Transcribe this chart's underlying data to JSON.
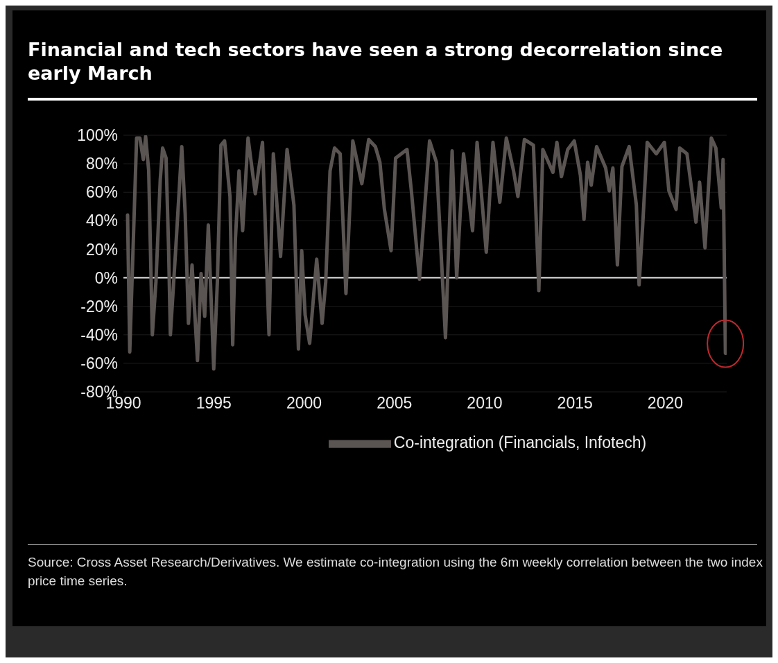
{
  "chart_data": {
    "type": "line",
    "title": "Financial and tech sectors have seen a strong decorrelation since early March",
    "x": [
      1990.23,
      1990.35,
      1990.73,
      1990.91,
      1991.1,
      1991.23,
      1991.4,
      1991.6,
      1991.8,
      1992.04,
      1992.17,
      1992.36,
      1992.5,
      1992.6,
      1992.9,
      1993.23,
      1993.42,
      1993.6,
      1993.8,
      1994.1,
      1994.3,
      1994.5,
      1994.7,
      1995.0,
      1995.2,
      1995.4,
      1995.6,
      1995.9,
      1996.05,
      1996.2,
      1996.4,
      1996.6,
      1996.9,
      1997.3,
      1997.7,
      1998.06,
      1998.3,
      1998.7,
      1999.06,
      1999.44,
      1999.69,
      1999.87,
      2000.06,
      2000.31,
      2000.7,
      2001.0,
      2001.2,
      2001.44,
      2001.69,
      2002.0,
      2002.32,
      2002.7,
      2003.2,
      2003.58,
      2003.95,
      2004.2,
      2004.45,
      2004.82,
      2005.07,
      2005.7,
      2005.95,
      2006.39,
      2006.95,
      2007.33,
      2007.83,
      2008.2,
      2008.45,
      2008.83,
      2009.33,
      2009.58,
      2010.09,
      2010.46,
      2010.84,
      2011.2,
      2011.6,
      2011.84,
      2012.2,
      2012.7,
      2013.0,
      2013.22,
      2013.78,
      2014.0,
      2014.25,
      2014.6,
      2014.96,
      2015.3,
      2015.5,
      2015.7,
      2015.9,
      2016.2,
      2016.7,
      2016.9,
      2017.1,
      2017.35,
      2017.6,
      2018.0,
      2018.4,
      2018.55,
      2018.75,
      2019.0,
      2019.5,
      2019.95,
      2020.2,
      2020.6,
      2020.8,
      2021.2,
      2021.7,
      2021.9,
      2022.2,
      2022.55,
      2022.8,
      2023.1,
      2023.2,
      2023.33
    ],
    "series": [
      {
        "name": "Co-integration (Financials, Infotech)",
        "color": "#5a5452",
        "values": [
          44,
          -52,
          98,
          98,
          83,
          99,
          75,
          -40,
          -3,
          69,
          91,
          84,
          21,
          -40,
          21,
          92,
          45,
          -32,
          9,
          -58,
          3,
          -27,
          37,
          -64,
          -3,
          93,
          96,
          57,
          -47,
          27,
          75,
          33,
          98,
          59,
          95,
          -40,
          87,
          15,
          90,
          51,
          -50,
          19,
          -26,
          -46,
          13,
          -32,
          -3,
          75,
          91,
          87,
          -11,
          96,
          66,
          97,
          92,
          81,
          48,
          19,
          84,
          90,
          60,
          -1,
          96,
          81,
          -42,
          89,
          0,
          87,
          33,
          95,
          18,
          95,
          53,
          98,
          75,
          57,
          97,
          93,
          -9,
          90,
          74,
          95,
          71,
          90,
          96,
          72,
          41,
          81,
          65,
          92,
          77,
          61,
          77,
          9,
          78,
          92,
          51,
          -5,
          37,
          95,
          87,
          95,
          61,
          48,
          91,
          87,
          39,
          67,
          21,
          98,
          91,
          49,
          83,
          -53
        ]
      }
    ],
    "xlim": [
      1990,
      2023.4
    ],
    "xticks": [
      1990,
      1995,
      2000,
      2005,
      2010,
      2015,
      2020
    ],
    "ylim": [
      -80,
      100
    ],
    "yticks": [
      {
        "value": -80,
        "label": "-80%"
      },
      {
        "value": -60,
        "label": "-60%"
      },
      {
        "value": -40,
        "label": "-40%"
      },
      {
        "value": -20,
        "label": "-20%"
      },
      {
        "value": 0,
        "label": "0%"
      },
      {
        "value": 20,
        "label": "20%"
      },
      {
        "value": 40,
        "label": "40%"
      },
      {
        "value": 60,
        "label": "60%"
      },
      {
        "value": 80,
        "label": "80%"
      },
      {
        "value": 100,
        "label": "100%"
      }
    ],
    "ref_lines": [
      {
        "axis": "y",
        "value": 0,
        "color": "#e8e8e8"
      }
    ],
    "grid": "y",
    "legend": "bottom",
    "marker": "none",
    "line_style": "solid",
    "annotations": [
      "Source: Cross Asset Research/Derivatives. We estimate co-integration using the 6m weekly correlation between the two index price time series."
    ]
  }
}
